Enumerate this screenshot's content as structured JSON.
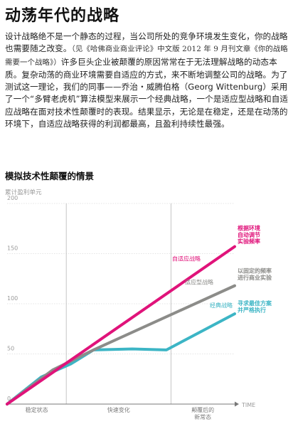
{
  "article": {
    "title": "动荡年代的战略",
    "paragraph_before": "设计战略绝不是一个静态的过程，当公司所处的竞争环境发生变化，你的战略也需要随之改变。",
    "citation": "（见《哈佛商业商业评论》中文版 2012 年 9 月刊文章《你的战略需要一个战略》）",
    "paragraph_after": "许多巨头企业被颠覆的原因常常在于无法理解战略的动态本质。复杂动荡的商业环境需要自适应的方式，来不断地调整公司的战略。为了测试这一理论，我们的同事——乔治・威腾伯格（Georg Wittenburg）采用了一个“多臂老虎机”算法模型来展示一个经典战略，一个是适应型战略和自适应战略在面对技术性颠覆时的表现。结果显示，无论是在稳定，还是在动荡的环境下，自适应战略获得的利润都最高，且盈利持续性最强。"
  },
  "chart_section": {
    "heading": "模拟技术性颠覆的情景"
  },
  "chart_data": {
    "type": "line",
    "ylabel": "累计盈利单元",
    "xlabel": "TIME",
    "yticks": [
      0,
      50,
      100,
      150,
      200
    ],
    "ylim": [
      0,
      200
    ],
    "xlim": [
      0,
      100
    ],
    "phases": [
      {
        "label": "稳定状态",
        "start": 0,
        "end": 26
      },
      {
        "label": "快速变化",
        "start": 26,
        "end": 72
      },
      {
        "label": "颠覆后的新常态",
        "lines": [
          "颠覆后的",
          "新常态"
        ],
        "start": 72,
        "end": 100
      }
    ],
    "series": [
      {
        "name": "自适应战略",
        "color": "#e0137a",
        "note": [
          "根据环境",
          "自动调节",
          "实验频率"
        ],
        "x": [
          0,
          100
        ],
        "y": [
          0,
          157
        ]
      },
      {
        "name": "适应型战略",
        "color": "#8c8c89",
        "note": [
          "以固定的频率",
          "进行商业实验"
        ],
        "x": [
          0,
          20,
          38,
          100
        ],
        "y": [
          0,
          34,
          54,
          118
        ]
      },
      {
        "name": "经典战略",
        "color": "#3cb5c5",
        "note": [
          "寻求最佳方案",
          "并严格执行"
        ],
        "x": [
          0,
          15,
          28,
          38,
          55,
          70,
          100
        ],
        "y": [
          0,
          27,
          40,
          54,
          55,
          54,
          90
        ]
      }
    ]
  }
}
